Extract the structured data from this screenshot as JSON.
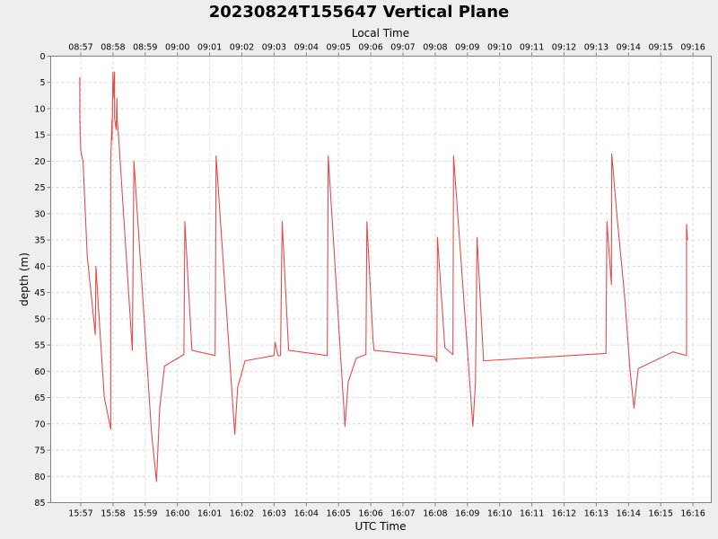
{
  "chart_data": {
    "type": "line",
    "title": "20230824T155647 Vertical Plane",
    "xlabel": "UTC Time",
    "x2label": "Local Time",
    "ylabel": "depth (m)",
    "y_inverted": true,
    "ylim": [
      0,
      85
    ],
    "yticks": [
      0,
      5,
      10,
      15,
      20,
      25,
      30,
      35,
      40,
      45,
      50,
      55,
      60,
      65,
      70,
      75,
      80,
      85
    ],
    "xlim_minutes": [
      15.9,
      16.67
    ],
    "xticks": [
      {
        "m": 0,
        "utc": "15:57",
        "local": "08:57"
      },
      {
        "m": 1,
        "utc": "15:58",
        "local": "08:58"
      },
      {
        "m": 2,
        "utc": "15:59",
        "local": "08:59"
      },
      {
        "m": 3,
        "utc": "16:00",
        "local": "09:00"
      },
      {
        "m": 4,
        "utc": "16:01",
        "local": "09:01"
      },
      {
        "m": 5,
        "utc": "16:02",
        "local": "09:02"
      },
      {
        "m": 6,
        "utc": "16:03",
        "local": "09:03"
      },
      {
        "m": 7,
        "utc": "16:04",
        "local": "09:04"
      },
      {
        "m": 8,
        "utc": "16:05",
        "local": "09:05"
      },
      {
        "m": 9,
        "utc": "16:06",
        "local": "09:06"
      },
      {
        "m": 10,
        "utc": "16:07",
        "local": "09:07"
      },
      {
        "m": 11,
        "utc": "16:08",
        "local": "09:08"
      },
      {
        "m": 12,
        "utc": "16:09",
        "local": "09:09"
      },
      {
        "m": 13,
        "utc": "16:10",
        "local": "09:10"
      },
      {
        "m": 14,
        "utc": "16:11",
        "local": "09:11"
      },
      {
        "m": 15,
        "utc": "16:12",
        "local": "09:12"
      },
      {
        "m": 16,
        "utc": "16:13",
        "local": "09:13"
      },
      {
        "m": 17,
        "utc": "16:14",
        "local": "09:14"
      },
      {
        "m": 18,
        "utc": "16:15",
        "local": "09:15"
      },
      {
        "m": 19,
        "utc": "16:16",
        "local": "09:16"
      }
    ],
    "grid": true,
    "series": [
      {
        "color": "#e84a4a",
        "points": [
          [
            -0.03,
            4
          ],
          [
            -0.03,
            12
          ],
          [
            0.0,
            18
          ],
          [
            0.07,
            20
          ],
          [
            0.2,
            38
          ],
          [
            0.45,
            53
          ],
          [
            0.47,
            40
          ],
          [
            0.55,
            48
          ],
          [
            0.73,
            65
          ],
          [
            0.93,
            71
          ],
          [
            0.93,
            20
          ],
          [
            0.97,
            12
          ],
          [
            0.97,
            16
          ],
          [
            1.0,
            3
          ],
          [
            1.03,
            8
          ],
          [
            1.05,
            3
          ],
          [
            1.05,
            12
          ],
          [
            1.1,
            14
          ],
          [
            1.12,
            8
          ],
          [
            1.13,
            12
          ],
          [
            1.17,
            15
          ],
          [
            1.6,
            56
          ],
          [
            1.65,
            20
          ],
          [
            2.2,
            72
          ],
          [
            2.35,
            81
          ],
          [
            2.45,
            67
          ],
          [
            2.6,
            59
          ],
          [
            3.2,
            56.8
          ],
          [
            3.23,
            31.5
          ],
          [
            3.45,
            56
          ],
          [
            4.17,
            57
          ],
          [
            4.2,
            19
          ],
          [
            4.78,
            72
          ],
          [
            4.87,
            63
          ],
          [
            5.1,
            58
          ],
          [
            6.0,
            57
          ],
          [
            6.03,
            54.5
          ],
          [
            6.12,
            57
          ],
          [
            6.2,
            57
          ],
          [
            6.25,
            31.5
          ],
          [
            6.45,
            56
          ],
          [
            7.65,
            57
          ],
          [
            7.68,
            19
          ],
          [
            8.2,
            70.5
          ],
          [
            8.3,
            62
          ],
          [
            8.55,
            57.5
          ],
          [
            8.85,
            56.8
          ],
          [
            8.88,
            31.5
          ],
          [
            9.07,
            54
          ],
          [
            9.1,
            56
          ],
          [
            10.97,
            57.2
          ],
          [
            11.05,
            58.2
          ],
          [
            11.07,
            34.5
          ],
          [
            11.3,
            55.5
          ],
          [
            11.55,
            56.8
          ],
          [
            11.57,
            19
          ],
          [
            12.17,
            70.5
          ],
          [
            12.25,
            62
          ],
          [
            12.3,
            34.5
          ],
          [
            12.5,
            58
          ],
          [
            16.3,
            56.6
          ],
          [
            16.33,
            31.5
          ],
          [
            16.47,
            43.5
          ],
          [
            16.48,
            18.6
          ],
          [
            16.65,
            31
          ],
          [
            16.87,
            45
          ],
          [
            17.05,
            60
          ],
          [
            17.17,
            67
          ],
          [
            17.3,
            59.5
          ],
          [
            18.38,
            56.3
          ],
          [
            18.8,
            57
          ],
          [
            18.8,
            32
          ],
          [
            18.83,
            35
          ]
        ]
      }
    ]
  }
}
